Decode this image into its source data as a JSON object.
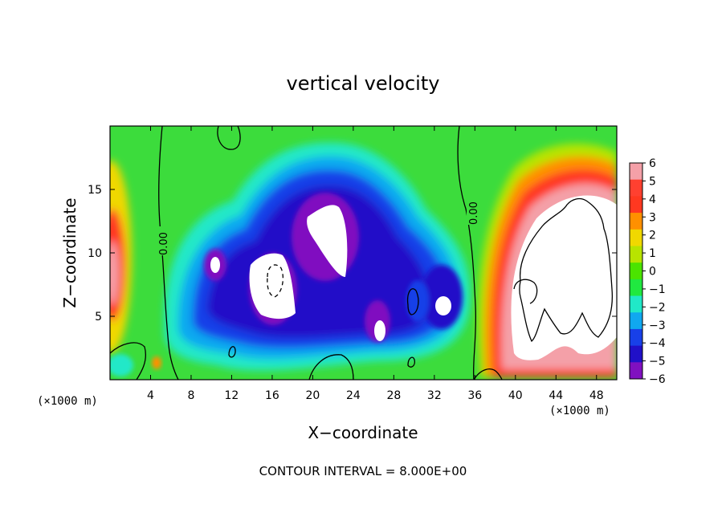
{
  "chart_data": {
    "type": "heatmap",
    "title": "vertical velocity",
    "xlabel": "X−coordinate",
    "ylabel": "Z−coordinate",
    "x_unit_label": "(×1000 m)",
    "x_unit_label_right": "(×1000 m)",
    "xlim": [
      0,
      50
    ],
    "ylim": [
      0,
      20
    ],
    "x_ticks": [
      4,
      8,
      12,
      16,
      20,
      24,
      28,
      32,
      36,
      40,
      44,
      48
    ],
    "y_ticks": [
      5,
      10,
      15
    ],
    "colorbar": {
      "ticks": [
        6,
        5,
        4,
        3,
        2,
        1,
        0,
        -1,
        -2,
        -3,
        -4,
        -5,
        -6
      ],
      "tick_labels": [
        "6",
        "5",
        "4",
        "3",
        "2",
        "1",
        "0",
        "−1",
        "−2",
        "−3",
        "−4",
        "−5",
        "−6"
      ],
      "colors": [
        "#f4a0a8",
        "#ff4030",
        "#ff3820",
        "#ff9000",
        "#f0d800",
        "#b8e400",
        "#4be400",
        "#20e840",
        "#20e8c8",
        "#10a8f0",
        "#1840e8",
        "#2010c8",
        "#8010c0"
      ]
    },
    "contour_labels": [
      {
        "text": "0.00",
        "x": 5.2,
        "y": 11.0
      },
      {
        "text": "0.00",
        "x": 35.5,
        "y": 13.5
      }
    ],
    "annotation": "CONTOUR INTERVAL = 8.000E+00",
    "features": [
      {
        "kind": "updraft",
        "x_range": [
          0,
          1.5
        ],
        "z_range": [
          5,
          12
        ],
        "peak": 6
      },
      {
        "kind": "downdraft",
        "x_range": [
          7,
          36
        ],
        "z_range": [
          1,
          17
        ],
        "peak": -6
      },
      {
        "kind": "updraft",
        "x_range": [
          37,
          50
        ],
        "z_range": [
          1,
          16
        ],
        "peak": 6
      },
      {
        "kind": "zero-contour",
        "x": 5
      },
      {
        "kind": "zero-contour",
        "x": 35
      }
    ]
  }
}
